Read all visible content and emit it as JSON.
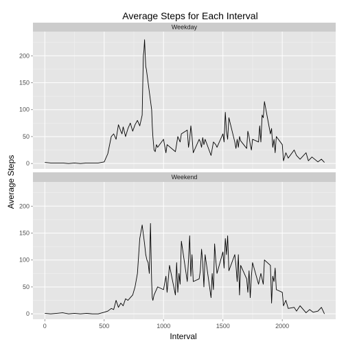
{
  "chart_data": {
    "type": "line",
    "title": "Average Steps for Each Interval",
    "xlabel": "Interval",
    "ylabel": "Average Steps",
    "xlim": [
      -100,
      2450
    ],
    "ylim": [
      -10,
      245
    ],
    "x_ticks": [
      0,
      500,
      1000,
      1500,
      2000
    ],
    "y_ticks": [
      0,
      50,
      100,
      150,
      200
    ],
    "grid": true,
    "colors": {
      "panel_bg": "#e5e5e5",
      "strip_bg": "#cccccc",
      "grid_major": "#ffffff",
      "grid_minor": "#f2f2f2",
      "line": "#000000"
    },
    "facets": [
      {
        "label": "Weekday",
        "x": [
          0,
          50,
          100,
          150,
          200,
          250,
          300,
          350,
          400,
          450,
          500,
          530,
          560,
          580,
          600,
          620,
          640,
          650,
          660,
          680,
          700,
          720,
          740,
          760,
          780,
          800,
          820,
          830,
          835,
          840,
          845,
          850,
          855,
          900,
          905,
          910,
          920,
          930,
          940,
          950,
          1000,
          1020,
          1030,
          1100,
          1120,
          1140,
          1150,
          1200,
          1210,
          1220,
          1230,
          1240,
          1250,
          1300,
          1310,
          1320,
          1330,
          1340,
          1350,
          1400,
          1420,
          1440,
          1450,
          1500,
          1510,
          1520,
          1530,
          1540,
          1550,
          1600,
          1610,
          1620,
          1630,
          1640,
          1650,
          1700,
          1710,
          1720,
          1730,
          1740,
          1750,
          1800,
          1810,
          1820,
          1830,
          1840,
          1850,
          1900,
          1910,
          1920,
          1930,
          1940,
          1950,
          2000,
          2010,
          2030,
          2050,
          2100,
          2120,
          2150,
          2200,
          2220,
          2250,
          2300,
          2330,
          2355
        ],
        "values": [
          2,
          1,
          1,
          1,
          0,
          1,
          0,
          1,
          1,
          1,
          3,
          18,
          50,
          55,
          45,
          72,
          60,
          55,
          68,
          50,
          65,
          75,
          60,
          72,
          80,
          70,
          90,
          200,
          210,
          230,
          205,
          180,
          175,
          100,
          70,
          50,
          25,
          22,
          35,
          30,
          45,
          20,
          35,
          22,
          50,
          40,
          55,
          62,
          30,
          45,
          70,
          50,
          20,
          45,
          40,
          30,
          48,
          35,
          45,
          15,
          40,
          35,
          30,
          55,
          40,
          95,
          60,
          45,
          85,
          40,
          28,
          45,
          30,
          50,
          42,
          28,
          60,
          50,
          35,
          25,
          45,
          40,
          70,
          40,
          90,
          85,
          115,
          55,
          65,
          30,
          45,
          20,
          50,
          35,
          5,
          20,
          10,
          25,
          15,
          8,
          20,
          5,
          12,
          3,
          8,
          2
        ],
        "ylim": [
          -10,
          245
        ]
      },
      {
        "label": "Weekend",
        "x": [
          0,
          50,
          100,
          150,
          200,
          250,
          300,
          350,
          400,
          450,
          500,
          530,
          560,
          580,
          600,
          620,
          640,
          660,
          680,
          700,
          720,
          740,
          760,
          780,
          800,
          820,
          840,
          850,
          860,
          870,
          880,
          890,
          900,
          905,
          910,
          920,
          930,
          950,
          1000,
          1020,
          1030,
          1050,
          1100,
          1110,
          1120,
          1130,
          1140,
          1150,
          1200,
          1210,
          1220,
          1230,
          1240,
          1250,
          1300,
          1310,
          1320,
          1330,
          1340,
          1350,
          1400,
          1410,
          1420,
          1430,
          1440,
          1450,
          1500,
          1510,
          1520,
          1530,
          1540,
          1550,
          1600,
          1610,
          1620,
          1630,
          1640,
          1650,
          1700,
          1710,
          1720,
          1730,
          1740,
          1750,
          1800,
          1820,
          1840,
          1850,
          1900,
          1910,
          1920,
          1930,
          1940,
          1950,
          2000,
          2010,
          2030,
          2050,
          2100,
          2120,
          2150,
          2200,
          2230,
          2260,
          2300,
          2330,
          2355
        ],
        "values": [
          1,
          0,
          1,
          2,
          0,
          1,
          0,
          1,
          0,
          0,
          3,
          5,
          10,
          8,
          25,
          12,
          20,
          15,
          28,
          25,
          30,
          35,
          50,
          75,
          140,
          165,
          130,
          110,
          100,
          95,
          75,
          168,
          60,
          30,
          25,
          35,
          40,
          50,
          45,
          70,
          40,
          90,
          35,
          95,
          40,
          75,
          55,
          135,
          60,
          100,
          145,
          70,
          110,
          60,
          65,
          80,
          120,
          95,
          50,
          110,
          30,
          75,
          45,
          130,
          100,
          75,
          115,
          85,
          140,
          110,
          145,
          80,
          110,
          90,
          60,
          110,
          35,
          90,
          65,
          40,
          80,
          30,
          70,
          95,
          55,
          75,
          55,
          100,
          90,
          20,
          70,
          60,
          85,
          45,
          40,
          15,
          25,
          10,
          12,
          5,
          15,
          2,
          8,
          3,
          5,
          12,
          0
        ],
        "ylim": [
          -10,
          245
        ]
      }
    ]
  }
}
